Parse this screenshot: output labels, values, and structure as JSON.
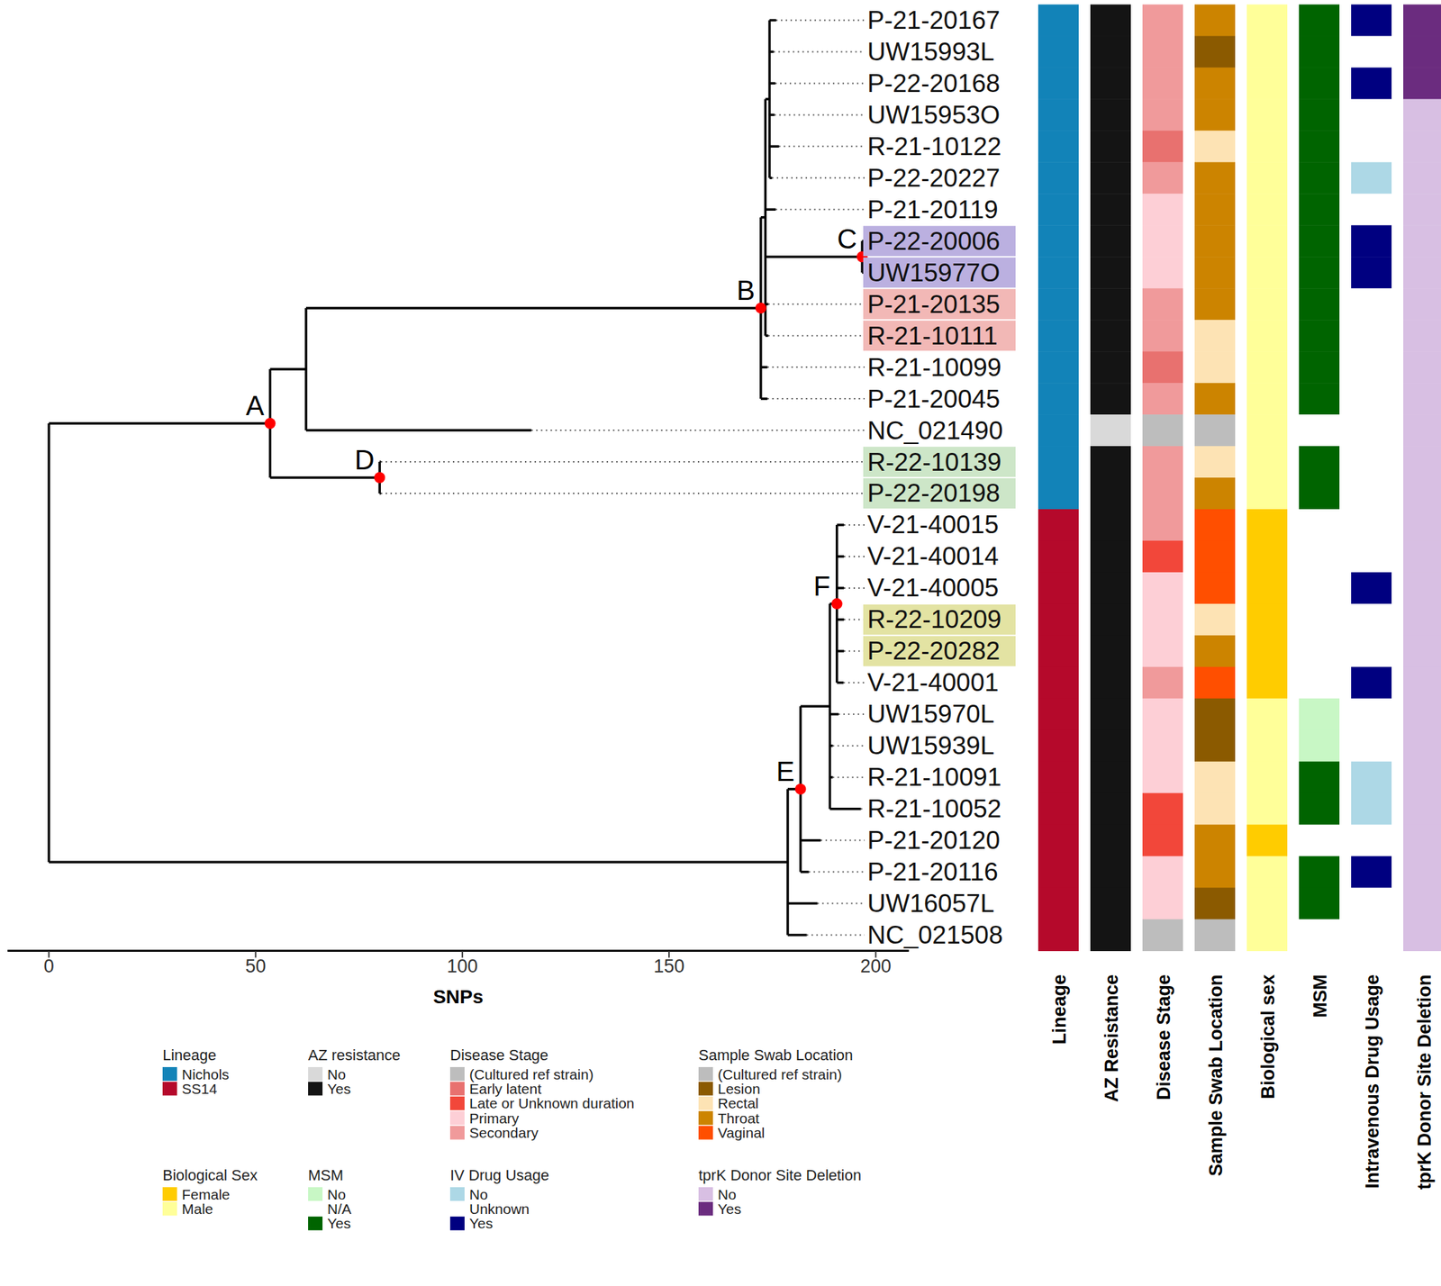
{
  "chart_data": {
    "type": "phylogenetic_tree",
    "x_label": "SNPs",
    "xlim": [
      -10,
      208
    ],
    "xticks": [
      0,
      50,
      100,
      150,
      200
    ],
    "tree": {
      "x": 0,
      "children": [
        {
          "x": 53.5,
          "label": "A",
          "children": [
            {
              "x": 62.2,
              "children": [
                {
                  "x": 172.2,
                  "label": "B",
                  "children": [
                    {
                      "x": 173.3,
                      "children": [
                        {
                          "x": 174.3,
                          "children": [
                            {
                              "name": "P-21-20167",
                              "x": 175.9
                            },
                            {
                              "name": "UW15993L",
                              "x": 175.3
                            },
                            {
                              "name": "P-22-20168",
                              "x": 175.7
                            },
                            {
                              "name": "UW15953O",
                              "x": 175.5
                            },
                            {
                              "name": "R-21-10122",
                              "x": 176.6
                            },
                            {
                              "name": "P-22-20227",
                              "x": 174.9
                            }
                          ]
                        },
                        {
                          "name": "P-21-20119",
                          "x": 175.8
                        },
                        {
                          "x": 196.7,
                          "label": "C",
                          "children": [
                            {
                              "name": "P-22-20006",
                              "x": 197.2,
                              "highlight": "#bbb0e0"
                            },
                            {
                              "name": "UW15977O",
                              "x": 197.2,
                              "highlight": "#bbb0e0"
                            }
                          ]
                        },
                        {
                          "name": "P-21-20135",
                          "x": 174,
                          "highlight": "#f2b8b6"
                        },
                        {
                          "name": "R-21-10111",
                          "x": 174,
                          "highlight": "#f2b8b6"
                        }
                      ]
                    },
                    {
                      "name": "R-21-10099",
                      "x": 173.8
                    },
                    {
                      "name": "P-21-20045",
                      "x": 173.8
                    }
                  ]
                },
                {
                  "name": "NC_021490",
                  "x": 116.7
                }
              ]
            },
            {
              "x": 80,
              "label": "D",
              "children": [
                {
                  "name": "R-22-10139",
                  "x": 80.3,
                  "highlight": "#cde6c8"
                },
                {
                  "name": "P-22-20198",
                  "x": 80.3,
                  "highlight": "#cde6c8"
                }
              ]
            }
          ]
        },
        {
          "x": 178.7,
          "children": [
            {
              "x": 181.8,
              "label": "E",
              "children": [
                {
                  "x": 188.9,
                  "children": [
                    {
                      "x": 190.6,
                      "label": "F",
                      "children": [
                        {
                          "name": "V-21-40015",
                          "x": 192.3
                        },
                        {
                          "name": "V-21-40014",
                          "x": 192.3
                        },
                        {
                          "name": "V-21-40005",
                          "x": 192.3
                        },
                        {
                          "name": "R-22-10209",
                          "x": 192.3,
                          "highlight": "#e3e3a3"
                        },
                        {
                          "name": "P-22-20282",
                          "x": 192.3,
                          "highlight": "#e3e3a3"
                        },
                        {
                          "name": "V-21-40001",
                          "x": 192.2
                        }
                      ]
                    },
                    {
                      "name": "UW15970L",
                      "x": 191
                    },
                    {
                      "name": "UW15939L",
                      "x": 189.6
                    },
                    {
                      "name": "R-21-10091",
                      "x": 189.6
                    },
                    {
                      "name": "R-21-10052",
                      "x": 196.4
                    }
                  ]
                },
                {
                  "name": "P-21-20120",
                  "x": 186.7
                },
                {
                  "name": "P-21-20116",
                  "x": 183.8
                }
              ]
            },
            {
              "name": "UW16057L",
              "x": 185.9
            },
            {
              "name": "NC_021508",
              "x": 183.3
            }
          ]
        }
      ]
    },
    "columns": [
      {
        "title": "Lineage",
        "legend_title": "Lineage",
        "categories": [
          {
            "label": "Nichols",
            "color": "#1283b8"
          },
          {
            "label": "SS14",
            "color": "#b5092b"
          }
        ],
        "values": [
          "Nichols",
          "Nichols",
          "Nichols",
          "Nichols",
          "Nichols",
          "Nichols",
          "Nichols",
          "Nichols",
          "Nichols",
          "Nichols",
          "Nichols",
          "Nichols",
          "Nichols",
          "Nichols",
          "Nichols",
          "Nichols",
          "SS14",
          "SS14",
          "SS14",
          "SS14",
          "SS14",
          "SS14",
          "SS14",
          "SS14",
          "SS14",
          "SS14",
          "SS14",
          "SS14",
          "SS14",
          "SS14"
        ]
      },
      {
        "title": "AZ Resistance",
        "legend_title": "AZ resistance",
        "categories": [
          {
            "label": "No",
            "color": "#d9d9d9"
          },
          {
            "label": "Yes",
            "color": "#141414"
          }
        ],
        "values": [
          "Yes",
          "Yes",
          "Yes",
          "Yes",
          "Yes",
          "Yes",
          "Yes",
          "Yes",
          "Yes",
          "Yes",
          "Yes",
          "Yes",
          "Yes",
          "No",
          "Yes",
          "Yes",
          "Yes",
          "Yes",
          "Yes",
          "Yes",
          "Yes",
          "Yes",
          "Yes",
          "Yes",
          "Yes",
          "Yes",
          "Yes",
          "Yes",
          "Yes",
          "Yes"
        ]
      },
      {
        "title": "Disease Stage",
        "legend_title": "Disease Stage",
        "categories": [
          {
            "label": "(Cultured ref strain)",
            "color": "#bdbdbd"
          },
          {
            "label": "Early latent",
            "color": "#e8716f"
          },
          {
            "label": "Late or Unknown duration",
            "color": "#f2473a"
          },
          {
            "label": "Primary",
            "color": "#fdcfd6"
          },
          {
            "label": "Secondary",
            "color": "#f09a9b"
          }
        ],
        "values": [
          "Secondary",
          "Secondary",
          "Secondary",
          "Secondary",
          "Early latent",
          "Secondary",
          "Primary",
          "Primary",
          "Primary",
          "Secondary",
          "Secondary",
          "Early latent",
          "Secondary",
          "(Cultured ref strain)",
          "Secondary",
          "Secondary",
          "Secondary",
          "Late or Unknown duration",
          "Primary",
          "Primary",
          "Primary",
          "Secondary",
          "Primary",
          "Primary",
          "Primary",
          "Late or Unknown duration",
          "Late or Unknown duration",
          "Primary",
          "Primary",
          "(Cultured ref strain)"
        ]
      },
      {
        "title": "Sample Swab Location",
        "legend_title": "Sample Swab Location",
        "categories": [
          {
            "label": "(Cultured ref strain)",
            "color": "#bdbdbd"
          },
          {
            "label": "Lesion",
            "color": "#8b5a00"
          },
          {
            "label": "Rectal",
            "color": "#fde3b4"
          },
          {
            "label": "Throat",
            "color": "#cc8400"
          },
          {
            "label": "Vaginal",
            "color": "#ff4f00"
          }
        ],
        "values": [
          "Throat",
          "Lesion",
          "Throat",
          "Throat",
          "Rectal",
          "Throat",
          "Throat",
          "Throat",
          "Throat",
          "Throat",
          "Rectal",
          "Rectal",
          "Throat",
          "(Cultured ref strain)",
          "Rectal",
          "Throat",
          "Vaginal",
          "Vaginal",
          "Vaginal",
          "Rectal",
          "Throat",
          "Vaginal",
          "Lesion",
          "Lesion",
          "Rectal",
          "Rectal",
          "Throat",
          "Throat",
          "Lesion",
          "(Cultured ref strain)"
        ]
      },
      {
        "title": "Biological sex",
        "legend_title": "Biological Sex",
        "categories": [
          {
            "label": "Female",
            "color": "#ffcc00"
          },
          {
            "label": "Male",
            "color": "#ffff99"
          }
        ],
        "values": [
          "Male",
          "Male",
          "Male",
          "Male",
          "Male",
          "Male",
          "Male",
          "Male",
          "Male",
          "Male",
          "Male",
          "Male",
          "Male",
          "Male",
          "Male",
          "Male",
          "Female",
          "Female",
          "Female",
          "Female",
          "Female",
          "Female",
          "Male",
          "Male",
          "Male",
          "Male",
          "Female",
          "Male",
          "Male",
          "Male"
        ]
      },
      {
        "title": "MSM",
        "legend_title": "MSM",
        "categories": [
          {
            "label": "No",
            "color": "#c8f7c5"
          },
          {
            "label": "N/A",
            "color": "#ffffff"
          },
          {
            "label": "Yes",
            "color": "#006400"
          }
        ],
        "values": [
          "Yes",
          "Yes",
          "Yes",
          "Yes",
          "Yes",
          "Yes",
          "Yes",
          "Yes",
          "Yes",
          "Yes",
          "Yes",
          "Yes",
          "Yes",
          "N/A",
          "Yes",
          "Yes",
          "N/A",
          "N/A",
          "N/A",
          "N/A",
          "N/A",
          "N/A",
          "No",
          "No",
          "Yes",
          "Yes",
          "N/A",
          "Yes",
          "Yes",
          "N/A"
        ]
      },
      {
        "title": "Intravenous Drug Usage",
        "legend_title": "IV Drug Usage",
        "categories": [
          {
            "label": "No",
            "color": "#add8e6"
          },
          {
            "label": "Unknown",
            "color": "#ffffff"
          },
          {
            "label": "Yes",
            "color": "#000080"
          }
        ],
        "values": [
          "Yes",
          "Unknown",
          "Yes",
          "Unknown",
          "Unknown",
          "No",
          "Unknown",
          "Yes",
          "Yes",
          "Unknown",
          "Unknown",
          "Unknown",
          "Unknown",
          "Unknown",
          "Unknown",
          "Unknown",
          "Unknown",
          "Unknown",
          "Yes",
          "Unknown",
          "Unknown",
          "Yes",
          "Unknown",
          "Unknown",
          "No",
          "No",
          "Unknown",
          "Yes",
          "Unknown",
          "Unknown"
        ]
      },
      {
        "title": "tprK Donor Site Deletion",
        "legend_title": "tprK Donor Site Deletion",
        "categories": [
          {
            "label": "No",
            "color": "#d8bfe3"
          },
          {
            "label": "Yes",
            "color": "#6b2c7f"
          }
        ],
        "values": [
          "Yes",
          "Yes",
          "Yes",
          "No",
          "No",
          "No",
          "No",
          "No",
          "No",
          "No",
          "No",
          "No",
          "No",
          "No",
          "No",
          "No",
          "No",
          "No",
          "No",
          "No",
          "No",
          "No",
          "No",
          "No",
          "No",
          "No",
          "No",
          "No",
          "No",
          "No"
        ]
      }
    ]
  }
}
